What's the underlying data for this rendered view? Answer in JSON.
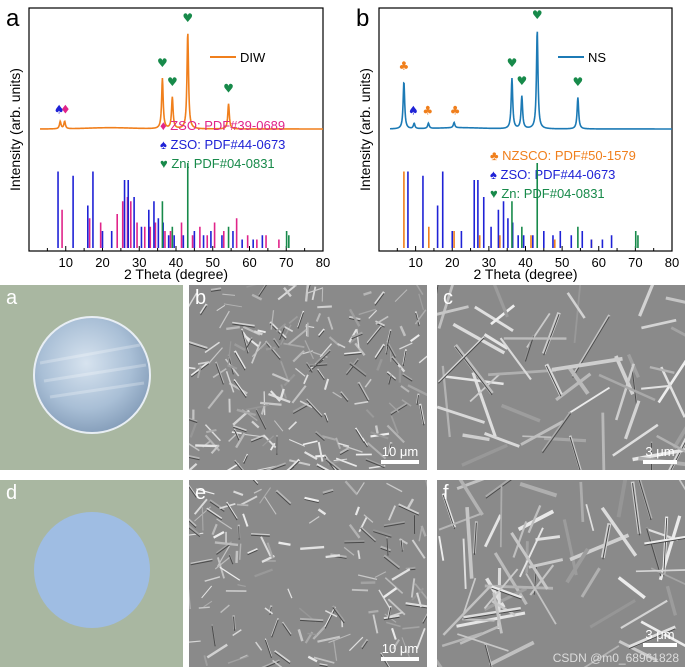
{
  "chart_data": [
    {
      "type": "line",
      "panel_label": "a",
      "xlabel": "2 Theta (degree)",
      "ylabel": "Intensity (arb. units)",
      "xlim": [
        0,
        80
      ],
      "ticks": [
        "10",
        "20",
        "30",
        "40",
        "50",
        "60",
        "70",
        "80"
      ],
      "pattern": {
        "name": "DIW",
        "color": "#f07f1c",
        "peaks": [
          {
            "x": 8.5,
            "h": 0.07
          },
          {
            "x": 9.7,
            "h": 0.07
          },
          {
            "x": 36.3,
            "h": 0.48
          },
          {
            "x": 39.0,
            "h": 0.3
          },
          {
            "x": 43.2,
            "h": 0.92
          },
          {
            "x": 54.3,
            "h": 0.24
          }
        ]
      },
      "markers": [
        {
          "x": 8.2,
          "y": 0.15,
          "symbol": "♠",
          "color": "#1f22d6"
        },
        {
          "x": 9.9,
          "y": 0.15,
          "symbol": "♦",
          "color": "#e0248a"
        },
        {
          "x": 36.3,
          "y": 0.59,
          "symbol": "♥",
          "color": "#178a4a"
        },
        {
          "x": 39.0,
          "y": 0.41,
          "symbol": "♥",
          "color": "#178a4a"
        },
        {
          "x": 43.2,
          "y": 1.02,
          "symbol": "♥",
          "color": "#178a4a"
        },
        {
          "x": 54.3,
          "y": 0.35,
          "symbol": "♥",
          "color": "#178a4a"
        }
      ],
      "references": [
        {
          "label": "ZSO: PDF#39-0689",
          "symbol": "♦",
          "color": "#e0248a",
          "sticks": [
            [
              9.0,
              0.45
            ],
            [
              16.5,
              0.35
            ],
            [
              19.5,
              0.3
            ],
            [
              24.0,
              0.4
            ],
            [
              25.5,
              0.55
            ],
            [
              26.8,
              0.6
            ],
            [
              27.7,
              0.55
            ],
            [
              29.4,
              0.3
            ],
            [
              31.5,
              0.25
            ],
            [
              33.0,
              0.25
            ],
            [
              34.4,
              0.3
            ],
            [
              37.0,
              0.2
            ],
            [
              38.5,
              0.2
            ],
            [
              41.5,
              0.3
            ],
            [
              44.5,
              0.15
            ],
            [
              46.5,
              0.25
            ],
            [
              48.5,
              0.15
            ],
            [
              50.5,
              0.3
            ],
            [
              53.0,
              0.2
            ],
            [
              56.5,
              0.35
            ],
            [
              59.5,
              0.15
            ],
            [
              62.0,
              0.1
            ],
            [
              64.5,
              0.15
            ],
            [
              68.0,
              0.1
            ]
          ]
        },
        {
          "label": "ZSO: PDF#44-0673",
          "symbol": "♠",
          "color": "#1f22d6",
          "sticks": [
            [
              7.9,
              0.9
            ],
            [
              12.0,
              0.85
            ],
            [
              16.0,
              0.5
            ],
            [
              17.4,
              0.9
            ],
            [
              20.0,
              0.2
            ],
            [
              22.5,
              0.2
            ],
            [
              26.0,
              0.8
            ],
            [
              27.0,
              0.8
            ],
            [
              28.6,
              0.6
            ],
            [
              30.6,
              0.25
            ],
            [
              32.6,
              0.45
            ],
            [
              34.0,
              0.55
            ],
            [
              35.2,
              0.35
            ],
            [
              36.5,
              0.3
            ],
            [
              38.0,
              0.15
            ],
            [
              39.5,
              0.15
            ],
            [
              42.0,
              0.15
            ],
            [
              45.0,
              0.2
            ],
            [
              47.5,
              0.15
            ],
            [
              49.5,
              0.2
            ],
            [
              52.5,
              0.15
            ],
            [
              55.5,
              0.2
            ],
            [
              58.0,
              0.1
            ],
            [
              61.0,
              0.1
            ],
            [
              63.5,
              0.15
            ]
          ]
        },
        {
          "label": "Zn: PDF#04-0831",
          "symbol": "♥",
          "color": "#178a4a",
          "sticks": [
            [
              36.3,
              0.55
            ],
            [
              39.0,
              0.25
            ],
            [
              43.2,
              1.0
            ],
            [
              54.3,
              0.25
            ],
            [
              70.1,
              0.2
            ],
            [
              70.7,
              0.15
            ]
          ]
        }
      ]
    },
    {
      "type": "line",
      "panel_label": "b",
      "xlabel": "2 Theta (degree)",
      "ylabel": "Intensity (arb. units)",
      "xlim": [
        0,
        80
      ],
      "ticks": [
        "10",
        "20",
        "30",
        "40",
        "50",
        "60",
        "70",
        "80"
      ],
      "pattern": {
        "name": "NS",
        "color": "#1c7ab5",
        "peaks": [
          {
            "x": 6.8,
            "h": 0.45
          },
          {
            "x": 9.6,
            "h": 0.05
          },
          {
            "x": 13.5,
            "h": 0.05
          },
          {
            "x": 20.5,
            "h": 0.05
          },
          {
            "x": 36.3,
            "h": 0.48
          },
          {
            "x": 39.0,
            "h": 0.31
          },
          {
            "x": 43.2,
            "h": 0.94
          },
          {
            "x": 54.3,
            "h": 0.3
          }
        ]
      },
      "markers": [
        {
          "x": 6.8,
          "y": 0.56,
          "symbol": "♣",
          "color": "#f07f1c"
        },
        {
          "x": 9.4,
          "y": 0.14,
          "symbol": "♠",
          "color": "#1f22d6"
        },
        {
          "x": 13.3,
          "y": 0.14,
          "symbol": "♣",
          "color": "#f07f1c"
        },
        {
          "x": 20.8,
          "y": 0.14,
          "symbol": "♣",
          "color": "#f07f1c"
        },
        {
          "x": 36.3,
          "y": 0.59,
          "symbol": "♥",
          "color": "#178a4a"
        },
        {
          "x": 39.0,
          "y": 0.42,
          "symbol": "♥",
          "color": "#178a4a"
        },
        {
          "x": 43.2,
          "y": 1.05,
          "symbol": "♥",
          "color": "#178a4a"
        },
        {
          "x": 54.3,
          "y": 0.41,
          "symbol": "♥",
          "color": "#178a4a"
        }
      ],
      "references": [
        {
          "label": "NZSCO: PDF#50-1579",
          "symbol": "♣",
          "color": "#f07f1c",
          "sticks": [
            [
              6.8,
              0.9
            ],
            [
              13.6,
              0.25
            ],
            [
              20.5,
              0.2
            ],
            [
              27.5,
              0.15
            ],
            [
              33.0,
              0.15
            ],
            [
              41.5,
              0.15
            ],
            [
              48.0,
              0.1
            ],
            [
              58.0,
              0.1
            ]
          ]
        },
        {
          "label": "ZSO: PDF#44-0673",
          "symbol": "♠",
          "color": "#1f22d6",
          "sticks": [
            [
              7.9,
              0.9
            ],
            [
              12.0,
              0.85
            ],
            [
              16.0,
              0.5
            ],
            [
              17.4,
              0.9
            ],
            [
              20.0,
              0.2
            ],
            [
              22.5,
              0.2
            ],
            [
              26.0,
              0.8
            ],
            [
              27.0,
              0.8
            ],
            [
              28.6,
              0.6
            ],
            [
              30.6,
              0.25
            ],
            [
              32.6,
              0.45
            ],
            [
              34.0,
              0.55
            ],
            [
              35.2,
              0.35
            ],
            [
              36.5,
              0.3
            ],
            [
              38.0,
              0.15
            ],
            [
              39.5,
              0.15
            ],
            [
              42.0,
              0.15
            ],
            [
              45.0,
              0.2
            ],
            [
              47.5,
              0.15
            ],
            [
              49.5,
              0.2
            ],
            [
              52.5,
              0.15
            ],
            [
              55.5,
              0.2
            ],
            [
              58.0,
              0.1
            ],
            [
              61.0,
              0.1
            ],
            [
              63.5,
              0.15
            ]
          ]
        },
        {
          "label": "Zn: PDF#04-0831",
          "symbol": "♥",
          "color": "#178a4a",
          "sticks": [
            [
              36.3,
              0.55
            ],
            [
              39.0,
              0.25
            ],
            [
              43.2,
              1.0
            ],
            [
              54.3,
              0.25
            ],
            [
              70.1,
              0.2
            ],
            [
              70.7,
              0.15
            ]
          ]
        }
      ]
    }
  ],
  "photos": [
    {
      "label": "a",
      "kind": "photo",
      "description_color": "#a8b8a2"
    },
    {
      "label": "b",
      "kind": "sem",
      "scale": "10 μm"
    },
    {
      "label": "c",
      "kind": "sem",
      "scale": "3 μm"
    },
    {
      "label": "d",
      "kind": "photo",
      "description_color": "#a8b8a2"
    },
    {
      "label": "e",
      "kind": "sem",
      "scale": "10 μm"
    },
    {
      "label": "f",
      "kind": "sem",
      "scale": "3 μm"
    }
  ],
  "watermark": "CSDN @m0_68961828"
}
